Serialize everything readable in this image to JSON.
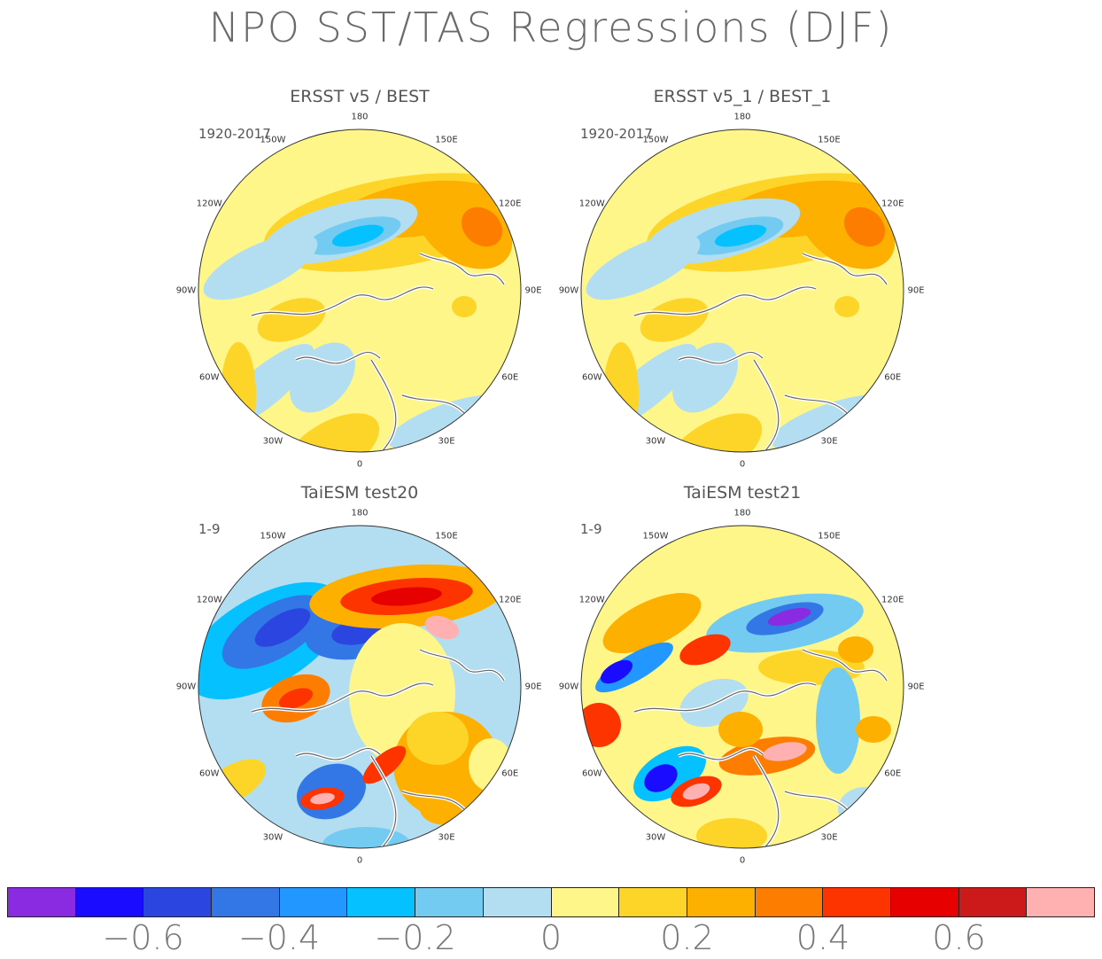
{
  "title": "NPO SST/TAS Regressions (DJF)",
  "panels": [
    {
      "id": "p1",
      "title": "ERSST v5 / BEST",
      "period": "1920-2017",
      "style": "obs"
    },
    {
      "id": "p2",
      "title": "ERSST v5_1 / BEST_1",
      "period": "1920-2017",
      "style": "obs"
    },
    {
      "id": "p3",
      "title": "TaiESM test20",
      "period": "1-9",
      "style": "model20"
    },
    {
      "id": "p4",
      "title": "TaiESM test21",
      "period": "1-9",
      "style": "model21"
    }
  ],
  "longitude_labels": [
    "180",
    "150E",
    "120E",
    "90E",
    "60E",
    "30E",
    "0",
    "30W",
    "60W",
    "90W",
    "120W",
    "150W"
  ],
  "colorbar": {
    "colors": [
      "#8a2be2",
      "#1a0dff",
      "#2b45e0",
      "#3377e6",
      "#2197ff",
      "#06c1ff",
      "#74cbf2",
      "#b3def2",
      "#fef688",
      "#fdd428",
      "#fdb000",
      "#fd7d00",
      "#fd3300",
      "#e60000",
      "#cc1a1a",
      "#ffb1b1"
    ],
    "tick_labels": [
      "−0.6",
      "−0.4",
      "−0.2",
      "0",
      "0.2",
      "0.4",
      "0.6"
    ]
  }
}
